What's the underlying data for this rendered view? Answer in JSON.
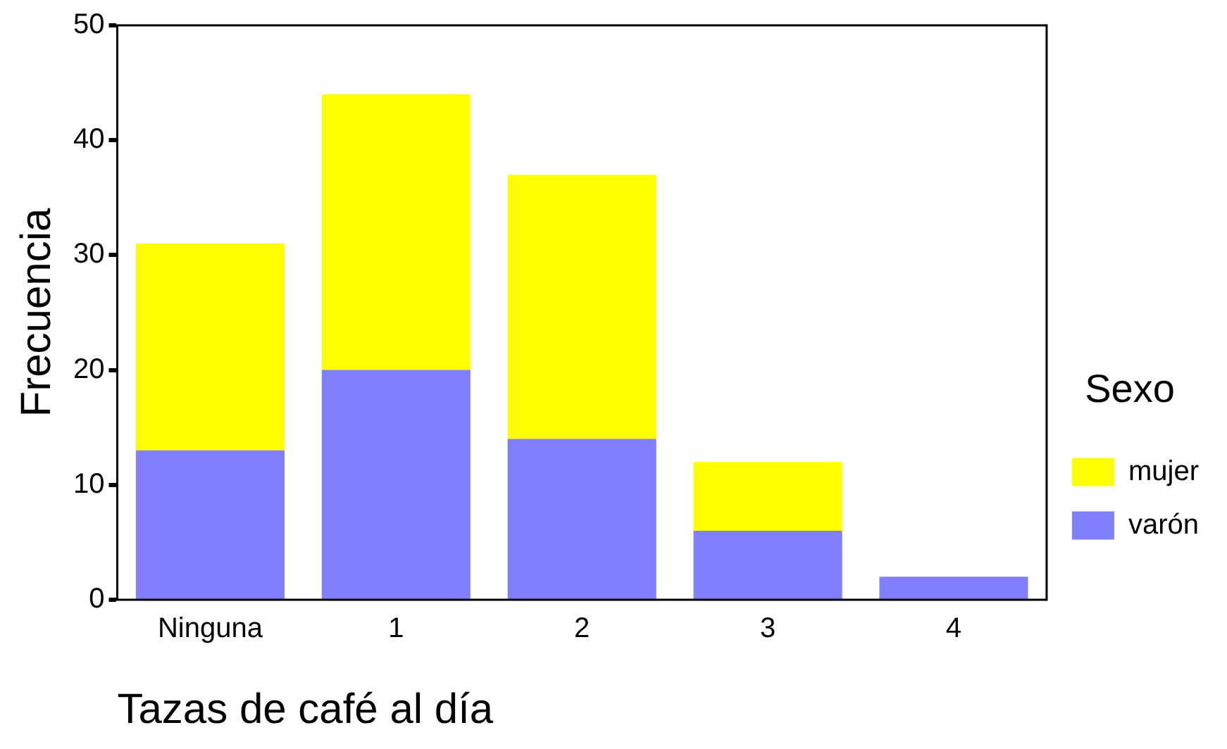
{
  "chart_data": {
    "type": "bar",
    "stacked": true,
    "xlabel": "Tazas de café al día",
    "ylabel": "Frecuencia",
    "legend_title": "Sexo",
    "legend": "right",
    "grid": false,
    "categories": [
      "Ninguna",
      "1",
      "2",
      "3",
      "4"
    ],
    "series": [
      {
        "name": "varón",
        "color": "#8080ff",
        "values": [
          13,
          20,
          14,
          6,
          2
        ]
      },
      {
        "name": "mujer",
        "color": "#ffff00",
        "values": [
          18,
          24,
          23,
          6,
          0
        ]
      }
    ],
    "ylim": [
      0,
      50
    ],
    "yticks": [
      0,
      10,
      20,
      30,
      40,
      50
    ]
  }
}
